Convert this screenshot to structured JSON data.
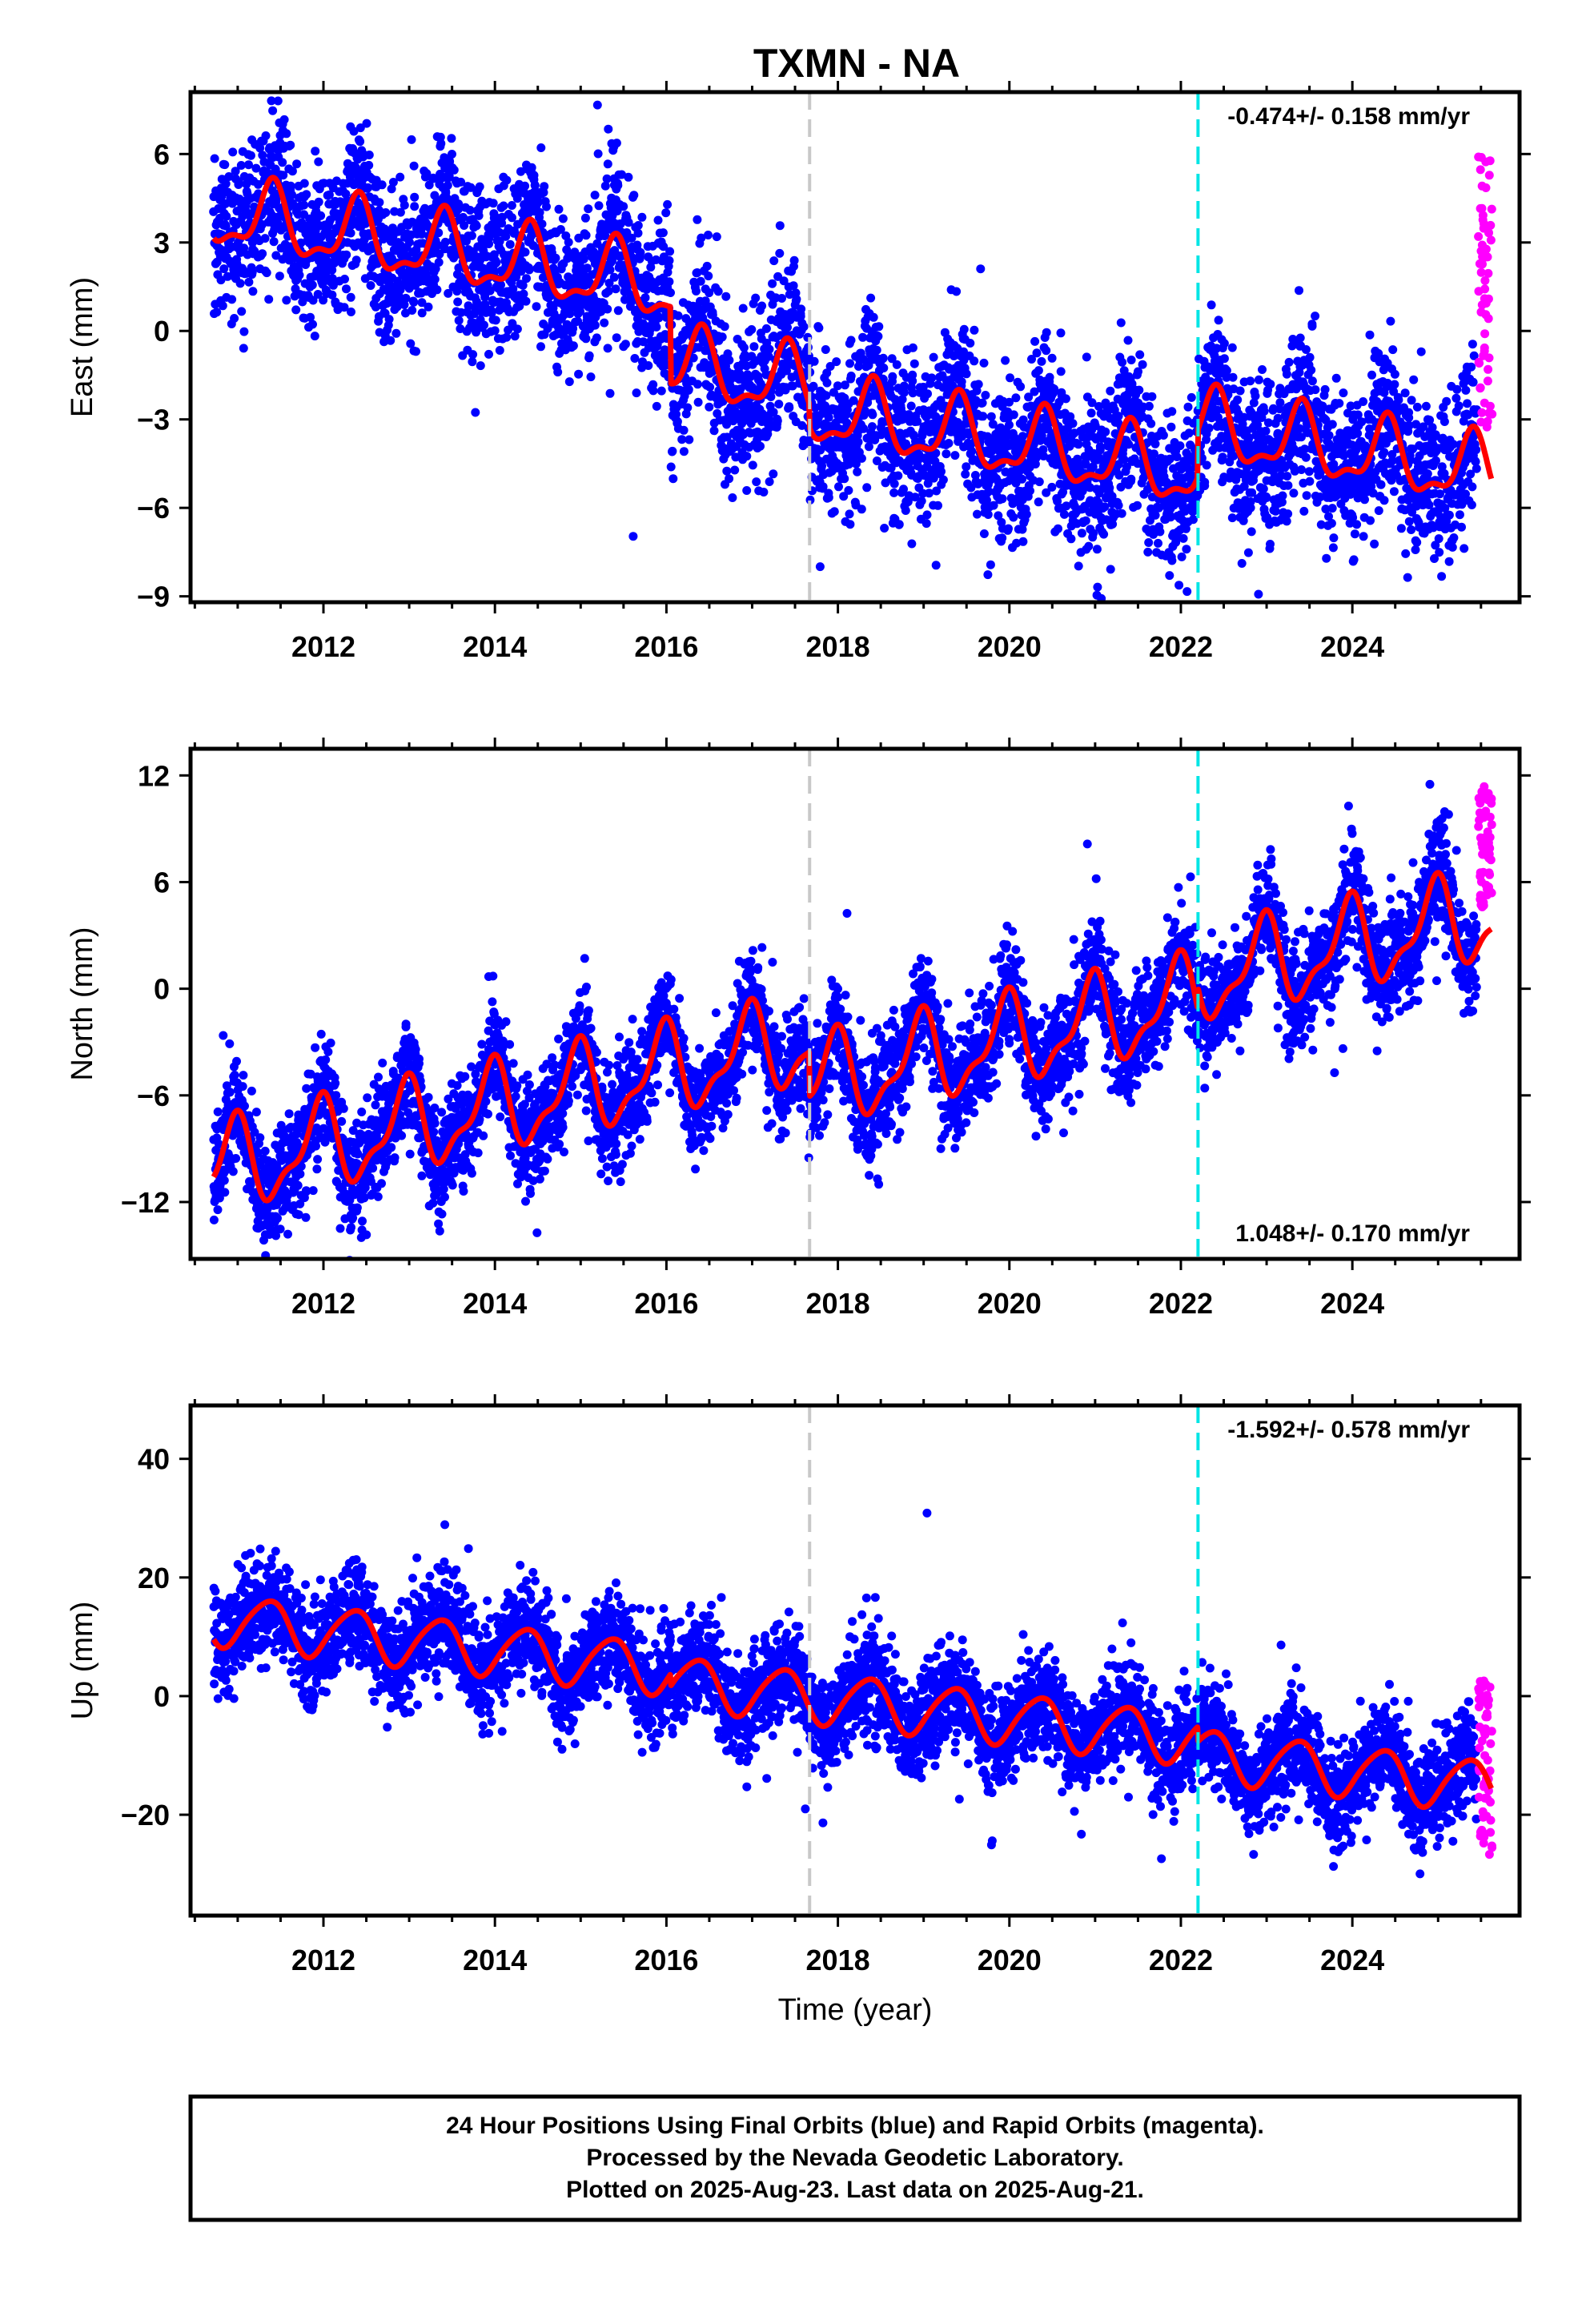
{
  "title": "TXMN - NA",
  "footer": {
    "line1": "24 Hour Positions Using Final Orbits (blue) and Rapid Orbits (magenta).",
    "line2": "Processed by the Nevada Geodetic Laboratory.",
    "line3": "Plotted on 2025-Aug-23. Last data on 2025-Aug-21."
  },
  "colors": {
    "final_orbits": "#0000ff",
    "rapid_orbits": "#ff00ff",
    "model_fit": "#ff0000",
    "equipment_change": "#c8c8c8",
    "other_event": "#00e5e5"
  },
  "chart_data": [
    {
      "type": "scatter",
      "name": "east",
      "ylabel": "East (mm)",
      "xlabel": "",
      "rate_label": "-0.474+/- 0.158 mm/yr",
      "rate_position": "top-right",
      "xlim": [
        2010.45,
        2025.95
      ],
      "ylim": [
        -9.2,
        8.1
      ],
      "xticks": [
        2012,
        2014,
        2016,
        2018,
        2020,
        2022,
        2024
      ],
      "xtick_labels": [
        "2012",
        "2014",
        "2016",
        "2018",
        "2020",
        "2022",
        "2024"
      ],
      "yticks": [
        -9,
        -6,
        -3,
        0,
        3,
        6
      ],
      "ytick_labels": [
        "−9",
        "−6",
        "−3",
        "0",
        "3",
        "6"
      ],
      "event_lines": [
        {
          "x": 2017.67,
          "color": "gray"
        },
        {
          "x": 2022.2,
          "color": "cyan"
        }
      ],
      "model": {
        "offset": 4.0,
        "rate_mm_per_yr": -0.474,
        "t0": 2010.7,
        "breaks": [
          {
            "x": 2016.05,
            "step": -2.6
          },
          {
            "x": 2017.67,
            "step": -0.8
          },
          {
            "x": 2022.2,
            "step": 1.6
          }
        ],
        "annual_amplitude": 1.1,
        "annual_phase": 0.85,
        "semiannual_amplitude": 0.45,
        "semiannual_phase": 0.2
      },
      "scatter_noise": 1.3,
      "rapid_range": [
        -3.3,
        6.0
      ],
      "point_count": 5200
    },
    {
      "type": "scatter",
      "name": "north",
      "ylabel": "North (mm)",
      "xlabel": "",
      "rate_label": "1.048+/- 0.170 mm/yr",
      "rate_position": "bottom-right",
      "xlim": [
        2010.45,
        2025.95
      ],
      "ylim": [
        -15.2,
        13.5
      ],
      "xticks": [
        2012,
        2014,
        2016,
        2018,
        2020,
        2022,
        2024
      ],
      "xtick_labels": [
        "2012",
        "2014",
        "2016",
        "2018",
        "2020",
        "2022",
        "2024"
      ],
      "yticks": [
        -12,
        -6,
        0,
        6,
        12
      ],
      "ytick_labels": [
        "−12",
        "−6",
        "0",
        "6",
        "12"
      ],
      "event_lines": [
        {
          "x": 2017.67,
          "color": "gray"
        },
        {
          "x": 2022.2,
          "color": "cyan"
        }
      ],
      "model": {
        "offset": -10.2,
        "rate_mm_per_yr": 1.048,
        "t0": 2010.7,
        "breaks": [
          {
            "x": 2017.67,
            "step": -2.5
          },
          {
            "x": 2022.2,
            "step": 1.2
          }
        ],
        "annual_amplitude": 2.3,
        "annual_phase": 0.3,
        "semiannual_amplitude": 0.9,
        "semiannual_phase": 0.6
      },
      "scatter_noise": 1.5,
      "rapid_range": [
        4.6,
        11.4
      ],
      "point_count": 5200
    },
    {
      "type": "scatter",
      "name": "up",
      "ylabel": "Up (mm)",
      "xlabel": "Time (year)",
      "rate_label": "-1.592+/- 0.578 mm/yr",
      "rate_position": "top-right",
      "xlim": [
        2010.45,
        2025.95
      ],
      "ylim": [
        -37,
        49
      ],
      "xticks": [
        2012,
        2014,
        2016,
        2018,
        2020,
        2022,
        2024
      ],
      "xtick_labels": [
        "2012",
        "2014",
        "2016",
        "2018",
        "2020",
        "2022",
        "2024"
      ],
      "yticks": [
        -20,
        0,
        20,
        40
      ],
      "ytick_labels": [
        "−20",
        "0",
        "20",
        "40"
      ],
      "event_lines": [
        {
          "x": 2017.67,
          "color": "gray"
        },
        {
          "x": 2022.2,
          "color": "cyan"
        }
      ],
      "model": {
        "offset": 13.0,
        "rate_mm_per_yr": -1.592,
        "t0": 2010.7,
        "breaks": [
          {
            "x": 2016.05,
            "step": -2.0
          },
          {
            "x": 2022.2,
            "step": -2.5
          }
        ],
        "annual_amplitude": 4.3,
        "annual_phase": 0.9,
        "semiannual_amplitude": 0.6,
        "semiannual_phase": 0.1
      },
      "scatter_noise": 4.2,
      "rapid_range": [
        -28,
        4
      ],
      "point_count": 5200
    }
  ]
}
